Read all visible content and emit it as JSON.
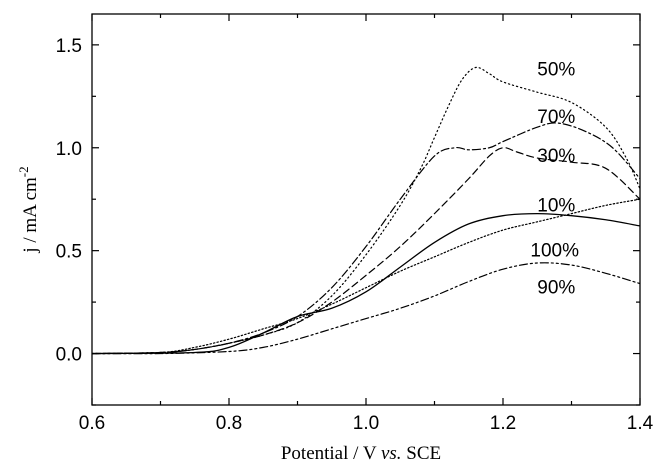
{
  "chart_data": {
    "type": "line",
    "title": "",
    "xlabel": {
      "prefix": "Potential / V ",
      "italic": "vs.",
      "suffix": " SCE"
    },
    "ylabel": {
      "main": "j / mA cm",
      "sup": "-2"
    },
    "xlim": [
      0.6,
      1.4
    ],
    "ylim": [
      -0.25,
      1.65
    ],
    "xticks": [
      "0.6",
      "0.8",
      "1.0",
      "1.2",
      "1.4"
    ],
    "yticks": [
      "0.0",
      "0.5",
      "1.0",
      "1.5"
    ],
    "grid": false,
    "legend": "inline labels",
    "series": [
      {
        "name": "50%",
        "dash": "dot",
        "x": [
          0.6,
          0.7,
          0.75,
          0.8,
          0.85,
          0.9,
          0.95,
          1.0,
          1.05,
          1.08,
          1.1,
          1.12,
          1.14,
          1.16,
          1.18,
          1.2,
          1.25,
          1.3,
          1.35,
          1.38,
          1.4
        ],
        "y": [
          0.0,
          0.005,
          0.02,
          0.05,
          0.09,
          0.15,
          0.28,
          0.48,
          0.72,
          0.9,
          1.05,
          1.2,
          1.33,
          1.39,
          1.36,
          1.32,
          1.27,
          1.22,
          1.1,
          0.95,
          0.8
        ]
      },
      {
        "name": "70%",
        "dash": "dashdot",
        "x": [
          0.6,
          0.7,
          0.75,
          0.8,
          0.85,
          0.9,
          0.95,
          1.0,
          1.05,
          1.1,
          1.13,
          1.15,
          1.18,
          1.2,
          1.25,
          1.28,
          1.32,
          1.36,
          1.4
        ],
        "y": [
          0.0,
          0.005,
          0.02,
          0.05,
          0.1,
          0.18,
          0.32,
          0.52,
          0.75,
          0.96,
          1.0,
          0.99,
          1.0,
          1.03,
          1.1,
          1.12,
          1.08,
          1.0,
          0.85
        ]
      },
      {
        "name": "30%",
        "dash": "dash",
        "x": [
          0.6,
          0.7,
          0.75,
          0.8,
          0.85,
          0.9,
          0.95,
          1.0,
          1.05,
          1.1,
          1.15,
          1.18,
          1.2,
          1.22,
          1.25,
          1.3,
          1.35,
          1.4
        ],
        "y": [
          0.0,
          0.005,
          0.02,
          0.05,
          0.09,
          0.15,
          0.25,
          0.38,
          0.52,
          0.68,
          0.85,
          0.96,
          1.0,
          0.98,
          0.95,
          0.93,
          0.9,
          0.75
        ]
      },
      {
        "name": "10%",
        "dash": "solid",
        "x": [
          0.6,
          0.75,
          0.8,
          0.85,
          0.9,
          0.95,
          1.0,
          1.05,
          1.1,
          1.15,
          1.2,
          1.25,
          1.3,
          1.35,
          1.4
        ],
        "y": [
          0.0,
          0.005,
          0.03,
          0.1,
          0.18,
          0.22,
          0.3,
          0.42,
          0.54,
          0.63,
          0.67,
          0.68,
          0.67,
          0.65,
          0.62
        ]
      },
      {
        "name": "100%",
        "dash": "densedot",
        "x": [
          0.6,
          0.7,
          0.75,
          0.8,
          0.85,
          0.9,
          0.95,
          1.0,
          1.05,
          1.1,
          1.15,
          1.2,
          1.25,
          1.3,
          1.35,
          1.4
        ],
        "y": [
          0.0,
          0.005,
          0.03,
          0.07,
          0.12,
          0.17,
          0.24,
          0.32,
          0.4,
          0.47,
          0.54,
          0.6,
          0.64,
          0.68,
          0.72,
          0.75
        ]
      },
      {
        "name": "90%",
        "dash": "dashdotdot",
        "x": [
          0.6,
          0.7,
          0.8,
          0.85,
          0.9,
          0.95,
          1.0,
          1.05,
          1.1,
          1.15,
          1.2,
          1.25,
          1.3,
          1.35,
          1.4
        ],
        "y": [
          0.0,
          0.0,
          0.01,
          0.03,
          0.07,
          0.12,
          0.17,
          0.22,
          0.28,
          0.35,
          0.41,
          0.44,
          0.43,
          0.39,
          0.34
        ]
      }
    ],
    "annotations": [
      {
        "text": "50%",
        "x": 1.25,
        "y": 1.38
      },
      {
        "text": "70%",
        "x": 1.25,
        "y": 1.15
      },
      {
        "text": "30%",
        "x": 1.25,
        "y": 0.96
      },
      {
        "text": "10%",
        "x": 1.25,
        "y": 0.72
      },
      {
        "text": "100%",
        "x": 1.24,
        "y": 0.5
      },
      {
        "text": "90%",
        "x": 1.25,
        "y": 0.32
      }
    ]
  }
}
